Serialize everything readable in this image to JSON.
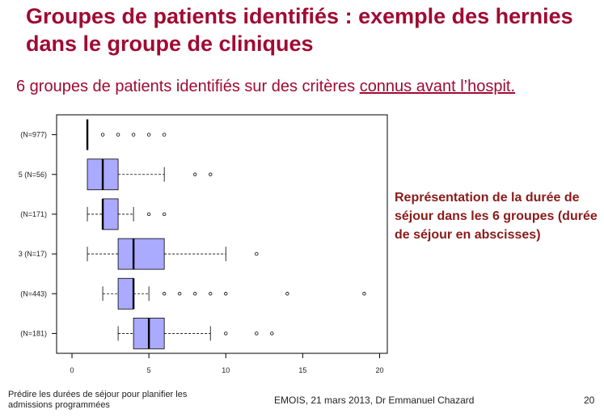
{
  "slide": {
    "title": "Groupes de patients identifiés : exemple des hernies dans le groupe de cliniques",
    "subtitle_prefix": "6 groupes de patients identifiés sur des critères ",
    "subtitle_underlined": "connus avant l’hospit.",
    "caption": "Représentation de la durée de séjour dans les 6 groupes (durée de séjour en abscisses)",
    "footer_left": "Prédire les durées de séjour pour planifier les admissions programmées",
    "footer_center": "EMOIS, 21 mars 2013, Dr Emmanuel Chazard",
    "page_number": "20"
  },
  "colors": {
    "title": "#a00a33",
    "caption": "#8b1a1a",
    "box_fill": "#aaaaff"
  },
  "chart_data": {
    "type": "boxplot",
    "orientation": "horizontal",
    "xlim": [
      -1,
      20.5
    ],
    "x_ticks": [
      0,
      5,
      10,
      15,
      20
    ],
    "grid": false,
    "categories": [
      "(N=977)",
      "5 (N=56)",
      "(N=171)",
      "3 (N=17)",
      "(N=443)",
      "(N=181)"
    ],
    "boxes": [
      {
        "label": "(N=977)",
        "whisker_low": 1,
        "q1": 1,
        "median": 1,
        "q3": 1,
        "whisker_high": 1,
        "outliers": [
          2,
          3,
          4,
          5,
          6
        ]
      },
      {
        "label": "5 (N=56)",
        "whisker_low": 1,
        "q1": 1,
        "median": 2,
        "q3": 3,
        "whisker_high": 6,
        "outliers": [
          8,
          9
        ]
      },
      {
        "label": "(N=171)",
        "whisker_low": 1,
        "q1": 2,
        "median": 2,
        "q3": 3,
        "whisker_high": 4,
        "outliers": [
          5,
          6
        ]
      },
      {
        "label": "3 (N=17)",
        "whisker_low": 1,
        "q1": 3,
        "median": 4,
        "q3": 6,
        "whisker_high": 10,
        "outliers": [
          12
        ]
      },
      {
        "label": "(N=443)",
        "whisker_low": 2,
        "q1": 3,
        "median": 4,
        "q3": 4,
        "whisker_high": 5,
        "outliers": [
          6,
          7,
          8,
          9,
          10,
          14,
          19
        ]
      },
      {
        "label": "(N=181)",
        "whisker_low": 3,
        "q1": 4,
        "median": 5,
        "q3": 6,
        "whisker_high": 9,
        "outliers": [
          10,
          12,
          13
        ]
      }
    ]
  }
}
